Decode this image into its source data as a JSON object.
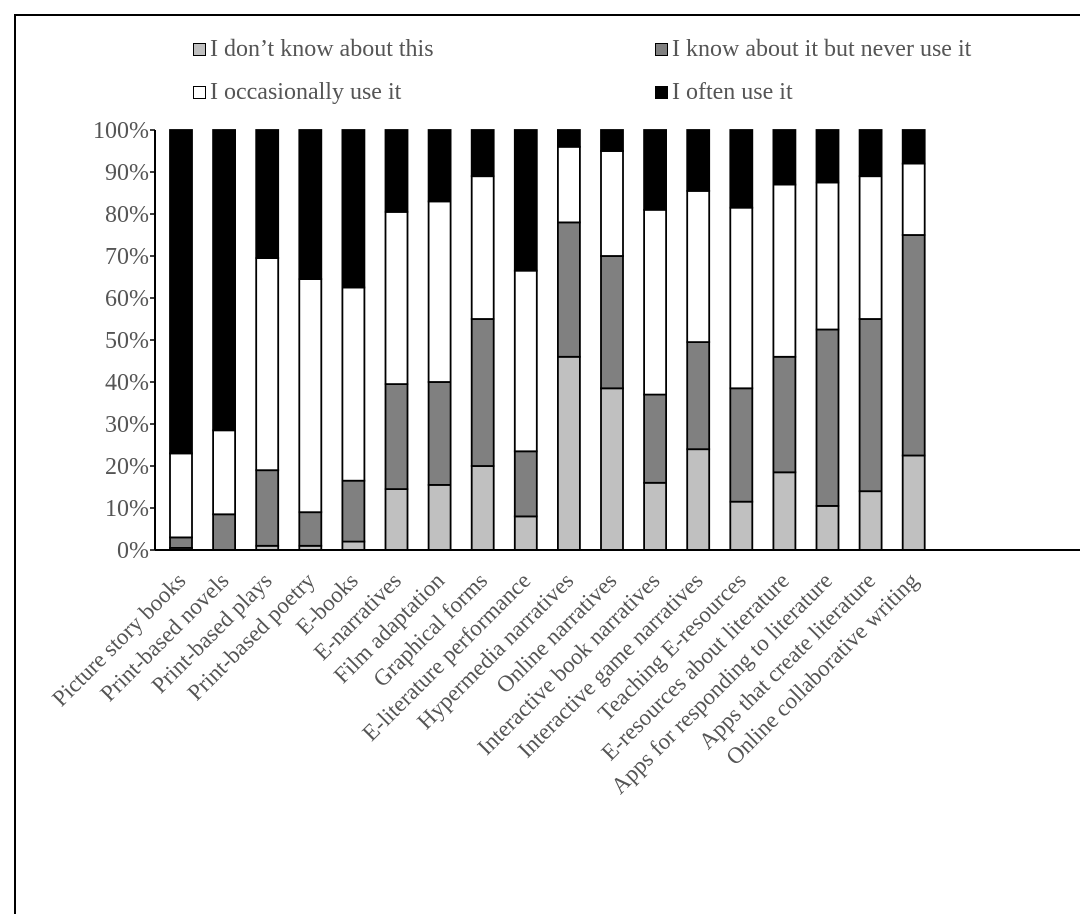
{
  "chart_data": {
    "type": "bar",
    "stacked": true,
    "percent": true,
    "ylim": [
      0,
      100
    ],
    "yticks": [
      "0%",
      "10%",
      "20%",
      "30%",
      "40%",
      "50%",
      "60%",
      "70%",
      "80%",
      "90%",
      "100%"
    ],
    "categories": [
      "Picture story books",
      "Print-based novels",
      "Print-based plays",
      "Print-based poetry",
      "E-books",
      "E-narratives",
      "Film adaptation",
      "Graphical forms",
      "E-literature performance",
      "Hypermedia narratives",
      "Online narratives",
      "Interactive book narratives",
      "Interactive game narratives",
      "Teaching E-resources",
      "E-resources about literature",
      "Apps for responding to literature",
      "Apps that create literature",
      "Online collaborative writing"
    ],
    "series": [
      {
        "name": "I don’t know about this",
        "color": "#c0c0c0",
        "values": [
          0.5,
          0,
          1,
          1,
          2,
          14.5,
          15.5,
          20,
          8,
          46,
          38.5,
          16,
          24,
          11.5,
          18.5,
          10.5,
          14,
          22.5
        ]
      },
      {
        "name": "I know about it but never use it",
        "color": "#808080",
        "values": [
          2.5,
          8.5,
          18,
          8,
          14.5,
          25,
          24.5,
          35,
          15.5,
          32,
          31.5,
          21,
          25.5,
          27,
          27.5,
          42,
          41,
          52.5
        ]
      },
      {
        "name": "I occasionally use it",
        "color": "#ffffff",
        "values": [
          20,
          20,
          50.5,
          55.5,
          46,
          41,
          43,
          34,
          43,
          18,
          25,
          44,
          36,
          43,
          41,
          35,
          34,
          17
        ]
      },
      {
        "name": "I often use it",
        "color": "#000000",
        "values": [
          77,
          71.5,
          30.5,
          35.5,
          37.5,
          19.5,
          17,
          11,
          33.5,
          4,
          5,
          19,
          14.5,
          18.5,
          13,
          12.5,
          11,
          8
        ]
      }
    ],
    "legend_position": "top",
    "grid": false
  }
}
